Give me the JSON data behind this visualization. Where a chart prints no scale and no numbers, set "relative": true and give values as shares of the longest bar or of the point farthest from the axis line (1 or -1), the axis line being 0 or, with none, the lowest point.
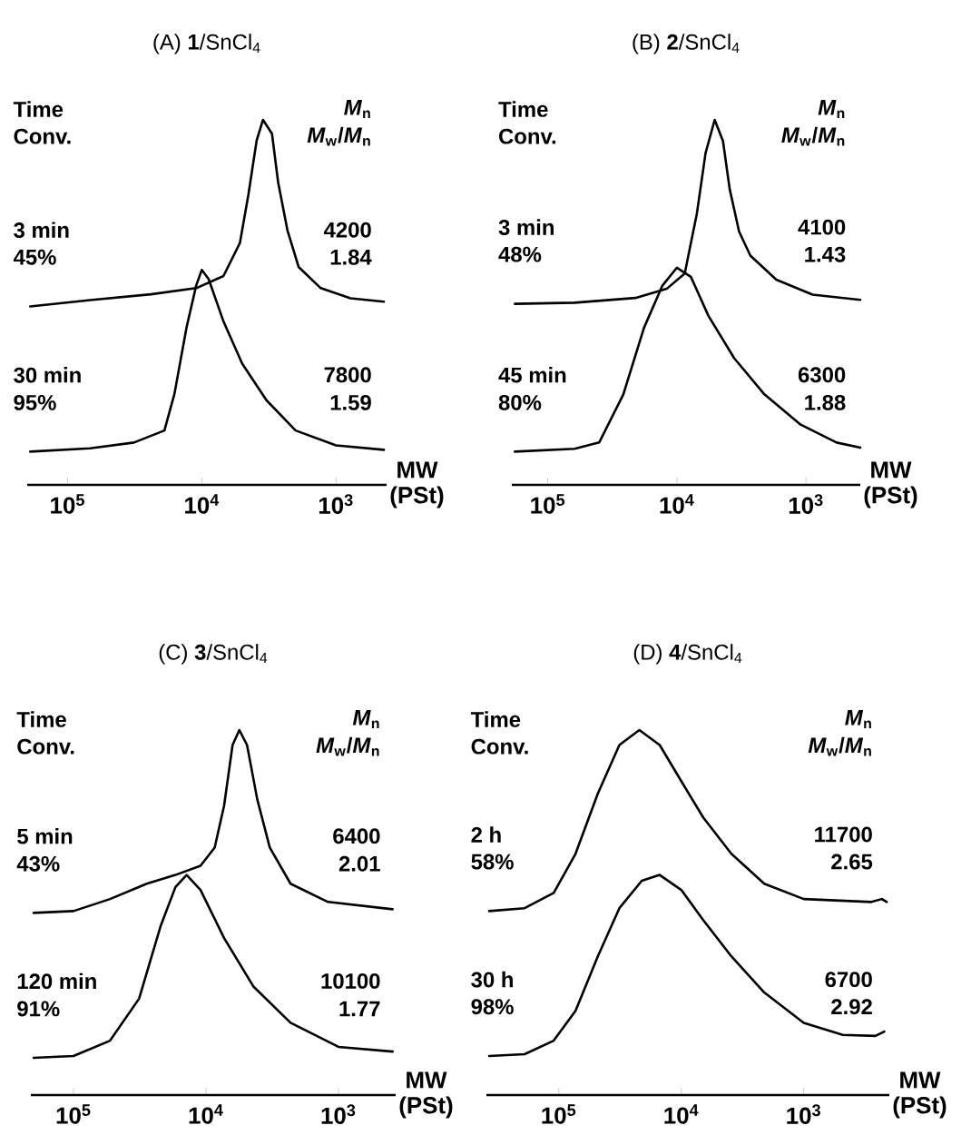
{
  "chart_data": [
    {
      "type": "line",
      "title": "(A) **1**/SnCl$_{4}$",
      "xlabel": "MW (PSt)",
      "relative": true,
      "log": "x",
      "xlim": [
        200000,
        420
      ],
      "xticks": [
        {
          "value": 100000,
          "label": "10$^{5}$"
        },
        {
          "value": 10000,
          "label": "10$^{4}$"
        },
        {
          "value": 1000,
          "label": "10$^{3}$"
        }
      ],
      "annotations": [
        "Time",
        "Conv.",
        "*M*$_{n}$",
        "*M*$_{w}$/*M*$_{n}$",
        "3 min",
        "45%",
        "4200",
        "1.84",
        "30 min",
        "95%",
        "7800",
        "1.59"
      ],
      "series": [
        {
          "color": "#000000",
          "x": [
            190000,
            68000,
            24000,
            11000,
            6900,
            5200,
            4500,
            3900,
            3500,
            3000,
            2700,
            2300,
            1900,
            1300,
            780,
            440
          ],
          "values": [
            0.489,
            0.506,
            0.522,
            0.539,
            0.572,
            0.663,
            0.794,
            0.944,
            1,
            0.962,
            0.829,
            0.697,
            0.597,
            0.539,
            0.511,
            0.502
          ]
        },
        {
          "color": "#000000",
          "x": [
            190000,
            68000,
            32000,
            19000,
            16000,
            13000,
            11000,
            10000,
            8900,
            6900,
            5000,
            3300,
            2000,
            1000,
            440
          ],
          "values": [
            0.091,
            0.1,
            0.116,
            0.149,
            0.249,
            0.431,
            0.547,
            0.589,
            0.564,
            0.448,
            0.332,
            0.232,
            0.149,
            0.108,
            0.096
          ]
        }
      ]
    },
    {
      "type": "line",
      "title": "(B) **2**/SnCl$_{4}$",
      "xlabel": "MW (PSt)",
      "relative": true,
      "log": "x",
      "xlim": [
        190000,
        380
      ],
      "xticks": [
        {
          "value": 100000,
          "label": "10$^{5}$"
        },
        {
          "value": 10000,
          "label": "10$^{4}$"
        },
        {
          "value": 1000,
          "label": "10$^{3}$"
        }
      ],
      "annotations": [
        "Time",
        "Conv.",
        "*M*$_{n}$",
        "*M*$_{w}$/*M*$_{n}$",
        "3 min",
        "48%",
        "4100",
        "1.43",
        "45 min",
        "80%",
        "6300",
        "1.88"
      ],
      "series": [
        {
          "color": "#000000",
          "x": [
            180000,
            62000,
            21000,
            12000,
            8700,
            7000,
            6000,
            5100,
            4400,
            3900,
            3300,
            2700,
            1700,
            890,
            380
          ],
          "values": [
            0.496,
            0.499,
            0.512,
            0.537,
            0.579,
            0.744,
            0.909,
            1,
            0.942,
            0.81,
            0.694,
            0.628,
            0.562,
            0.521,
            0.507
          ]
        },
        {
          "color": "#000000",
          "x": [
            180000,
            62000,
            40000,
            26000,
            18000,
            13000,
            10000,
            7800,
            5700,
            3600,
            2100,
            1100,
            580,
            380
          ],
          "values": [
            0.091,
            0.099,
            0.116,
            0.248,
            0.43,
            0.545,
            0.595,
            0.57,
            0.463,
            0.347,
            0.248,
            0.165,
            0.116,
            0.102
          ]
        }
      ]
    },
    {
      "type": "line",
      "title": "(C) **3**/SnCl$_{4}$",
      "xlabel": "MW (PSt)",
      "relative": true,
      "log": "x",
      "xlim": [
        210000,
        370
      ],
      "xticks": [
        {
          "value": 100000,
          "label": "10$^{5}$"
        },
        {
          "value": 10000,
          "label": "10$^{4}$"
        },
        {
          "value": 1000,
          "label": "10$^{3}$"
        }
      ],
      "annotations": [
        "Time",
        "Conv.",
        "*M*$_{n}$",
        "*M*$_{w}$/*M*$_{n}$",
        "5 min",
        "43%",
        "6400",
        "2.01",
        "120 min",
        "91%",
        "10100",
        "1.77"
      ],
      "series": [
        {
          "color": "#000000",
          "x": [
            200000,
            100000,
            53000,
            28000,
            17000,
            11000,
            8600,
            7300,
            6300,
            5600,
            4900,
            4100,
            3300,
            2300,
            1200,
            390
          ],
          "values": [
            0.499,
            0.504,
            0.537,
            0.579,
            0.603,
            0.628,
            0.678,
            0.793,
            0.959,
            1,
            0.959,
            0.81,
            0.678,
            0.579,
            0.529,
            0.509
          ]
        },
        {
          "color": "#000000",
          "x": [
            200000,
            100000,
            53000,
            32000,
            22000,
            17000,
            14000,
            11000,
            7300,
            4400,
            2300,
            1000,
            390
          ],
          "values": [
            0.102,
            0.107,
            0.149,
            0.264,
            0.463,
            0.57,
            0.603,
            0.562,
            0.43,
            0.298,
            0.198,
            0.132,
            0.119
          ]
        }
      ]
    },
    {
      "type": "line",
      "title": "(D) **4**/SnCl$_{4}$",
      "xlabel": "MW (PSt)",
      "relative": true,
      "log": "x",
      "xlim": [
        390000,
        200
      ],
      "xticks": [
        {
          "value": 100000,
          "label": "10$^{5}$"
        },
        {
          "value": 10000,
          "label": "10$^{4}$"
        },
        {
          "value": 1000,
          "label": "10$^{3}$"
        }
      ],
      "annotations": [
        "Time",
        "Conv.",
        "*M*$_{n}$",
        "*M*$_{w}$/*M*$_{n}$",
        "2 h",
        "58%",
        "11700",
        "2.65",
        "30 h",
        "98%",
        "6700",
        "2.92"
      ],
      "series": [
        {
          "color": "#000000",
          "x": [
            370000,
            190000,
            110000,
            73000,
            48000,
            32000,
            22000,
            15000,
            10000,
            6600,
            3900,
            2100,
            1000,
            280,
            230,
            210
          ],
          "values": [
            0.504,
            0.512,
            0.554,
            0.661,
            0.826,
            0.959,
            1,
            0.959,
            0.86,
            0.76,
            0.661,
            0.579,
            0.537,
            0.529,
            0.537,
            0.529
          ]
        },
        {
          "color": "#000000",
          "x": [
            370000,
            190000,
            110000,
            73000,
            48000,
            32000,
            21000,
            15000,
            10000,
            6600,
            3900,
            2100,
            1000,
            480,
            260,
            220
          ],
          "values": [
            0.107,
            0.112,
            0.149,
            0.231,
            0.38,
            0.512,
            0.587,
            0.603,
            0.562,
            0.479,
            0.38,
            0.281,
            0.198,
            0.165,
            0.162,
            0.174
          ]
        }
      ]
    }
  ]
}
